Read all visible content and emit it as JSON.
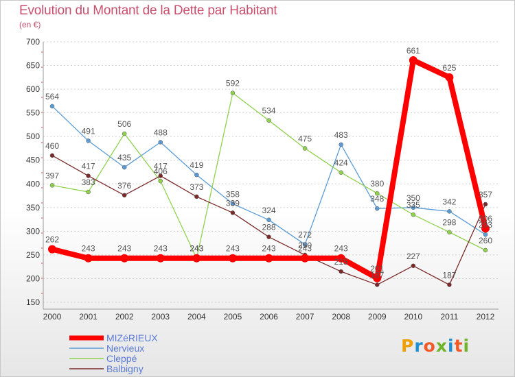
{
  "header": {
    "title": "Evolution du Montant de la Dette par Habitant",
    "subtitle": "(en €)"
  },
  "logo": {
    "letters": [
      "P",
      "r",
      "o",
      "x",
      "i",
      "t",
      "i"
    ],
    "colors": [
      "#f0a000",
      "#1e8fd0",
      "#f05a28",
      "#70b42c",
      "#1e8fd0",
      "#f05a28",
      "#70b42c"
    ]
  },
  "chart_data": {
    "type": "line",
    "title": "Evolution du Montant de la Dette par Habitant",
    "ylabel": "(en €)",
    "xlabel": "",
    "x": [
      "2000",
      "2001",
      "2002",
      "2003",
      "2004",
      "2005",
      "2006",
      "2007",
      "2008",
      "2009",
      "2010",
      "2011",
      "2012"
    ],
    "ylim": [
      150,
      700
    ],
    "yticks": [
      150,
      200,
      250,
      300,
      350,
      400,
      450,
      500,
      550,
      600,
      650,
      700
    ],
    "grid": "horizontal-dashed",
    "legend": "bottom-left",
    "series": [
      {
        "name": "Nervieux",
        "color": "#5b9bd5",
        "values": [
          564,
          491,
          435,
          488,
          419,
          358,
          324,
          272,
          483,
          348,
          350,
          342,
          293
        ],
        "labels": [
          "564",
          "491",
          "435",
          "488",
          "419",
          "358",
          "324",
          "272",
          "483",
          "348",
          "350",
          "342",
          "293"
        ]
      },
      {
        "name": "Cleppé",
        "color": "#8fd14f",
        "values": [
          397,
          383,
          506,
          406,
          243,
          592,
          534,
          475,
          424,
          380,
          335,
          298,
          260
        ],
        "labels": [
          "397",
          "383",
          "506",
          "406",
          "243",
          "592",
          "534",
          "475",
          "424",
          "380",
          "335",
          "298",
          "260"
        ]
      },
      {
        "name": "Balbigny",
        "color": "#7b2a2a",
        "values": [
          460,
          417,
          376,
          417,
          373,
          339,
          288,
          250,
          215,
          187,
          227,
          187,
          357
        ],
        "labels": [
          "460",
          "417",
          "376",
          "417",
          "373",
          "339",
          "288",
          "250",
          "215",
          "187",
          "227",
          "187",
          "357"
        ]
      },
      {
        "name": "MIZéRIEUX",
        "color": "#ff0000",
        "values": [
          262,
          243,
          243,
          243,
          243,
          243,
          243,
          243,
          243,
          201,
          661,
          625,
          306
        ],
        "labels": [
          "262",
          "243",
          "243",
          "243",
          "243",
          "243",
          "243",
          "243",
          "243",
          "201",
          "661",
          "625",
          "306"
        ]
      }
    ],
    "legend_order": [
      "MIZéRIEUX",
      "Nervieux",
      "Cleppé",
      "Balbigny"
    ]
  }
}
